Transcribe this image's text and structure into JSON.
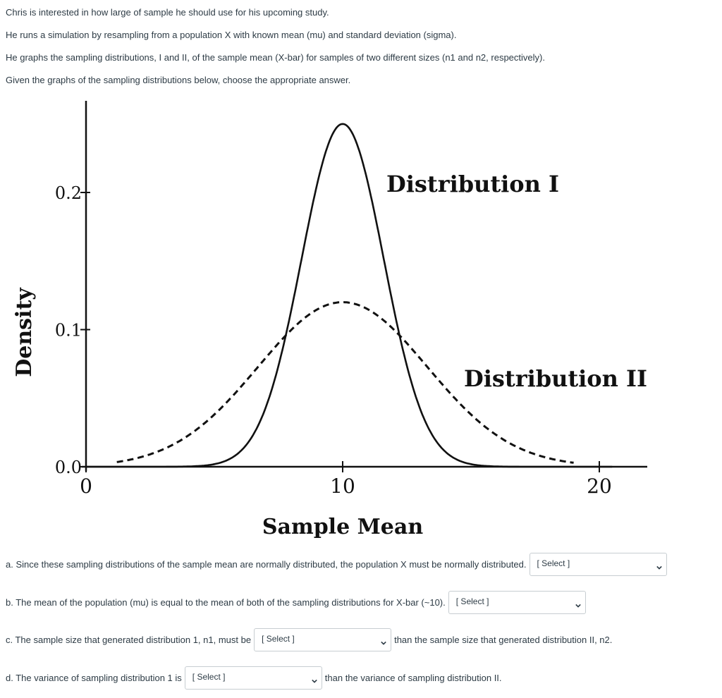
{
  "intro": [
    "Chris is interested in how large of sample he should use for his upcoming study.",
    "He runs a simulation by resampling from a population X with known mean (mu) and standard deviation (sigma).",
    "He graphs the sampling distributions, I and II, of the sample mean (X-bar) for samples of two different sizes (n1 and n2, respectively).",
    "Given the graphs of the sampling distributions below, choose the appropriate answer."
  ],
  "chart_data": {
    "type": "line",
    "xlabel": "Sample Mean",
    "ylabel": "Density",
    "xlim": [
      0,
      20
    ],
    "ylim": [
      0,
      0.25
    ],
    "x_ticks": [
      0,
      10,
      20
    ],
    "x_tick_labels": [
      "0",
      "10",
      "20"
    ],
    "y_ticks": [
      0,
      0.1,
      0.2
    ],
    "y_tick_labels": [
      "0.0",
      "0.1",
      "0.2"
    ],
    "grid": false,
    "series": [
      {
        "name": "Distribution I",
        "style": "solid",
        "distribution": "normal",
        "mean": 10,
        "sd": 1.6,
        "peak_density": 0.25,
        "label_position": "upper-right of peak"
      },
      {
        "name": "Distribution II",
        "style": "dashed",
        "distribution": "normal",
        "mean": 10,
        "sd": 3.3,
        "peak_density": 0.12,
        "label_position": "right side"
      }
    ]
  },
  "questions": [
    {
      "before": "a. Since these sampling distributions of the sample mean are normally distributed, the population X must be normally distributed.",
      "select": "[ Select ]",
      "after": ""
    },
    {
      "before": "b. The mean of the population (mu) is equal to the mean of both of the sampling distributions for X-bar (~10).",
      "select": "[ Select ]",
      "after": ""
    },
    {
      "before": "c. The sample size that generated distribution 1, n1, must be",
      "select": "[ Select ]",
      "after": "than the sample size that generated distribution II, n2."
    },
    {
      "before": "d. The variance of sampling distribution 1 is",
      "select": "[ Select ]",
      "after": "than the variance of  sampling distribution II."
    }
  ]
}
